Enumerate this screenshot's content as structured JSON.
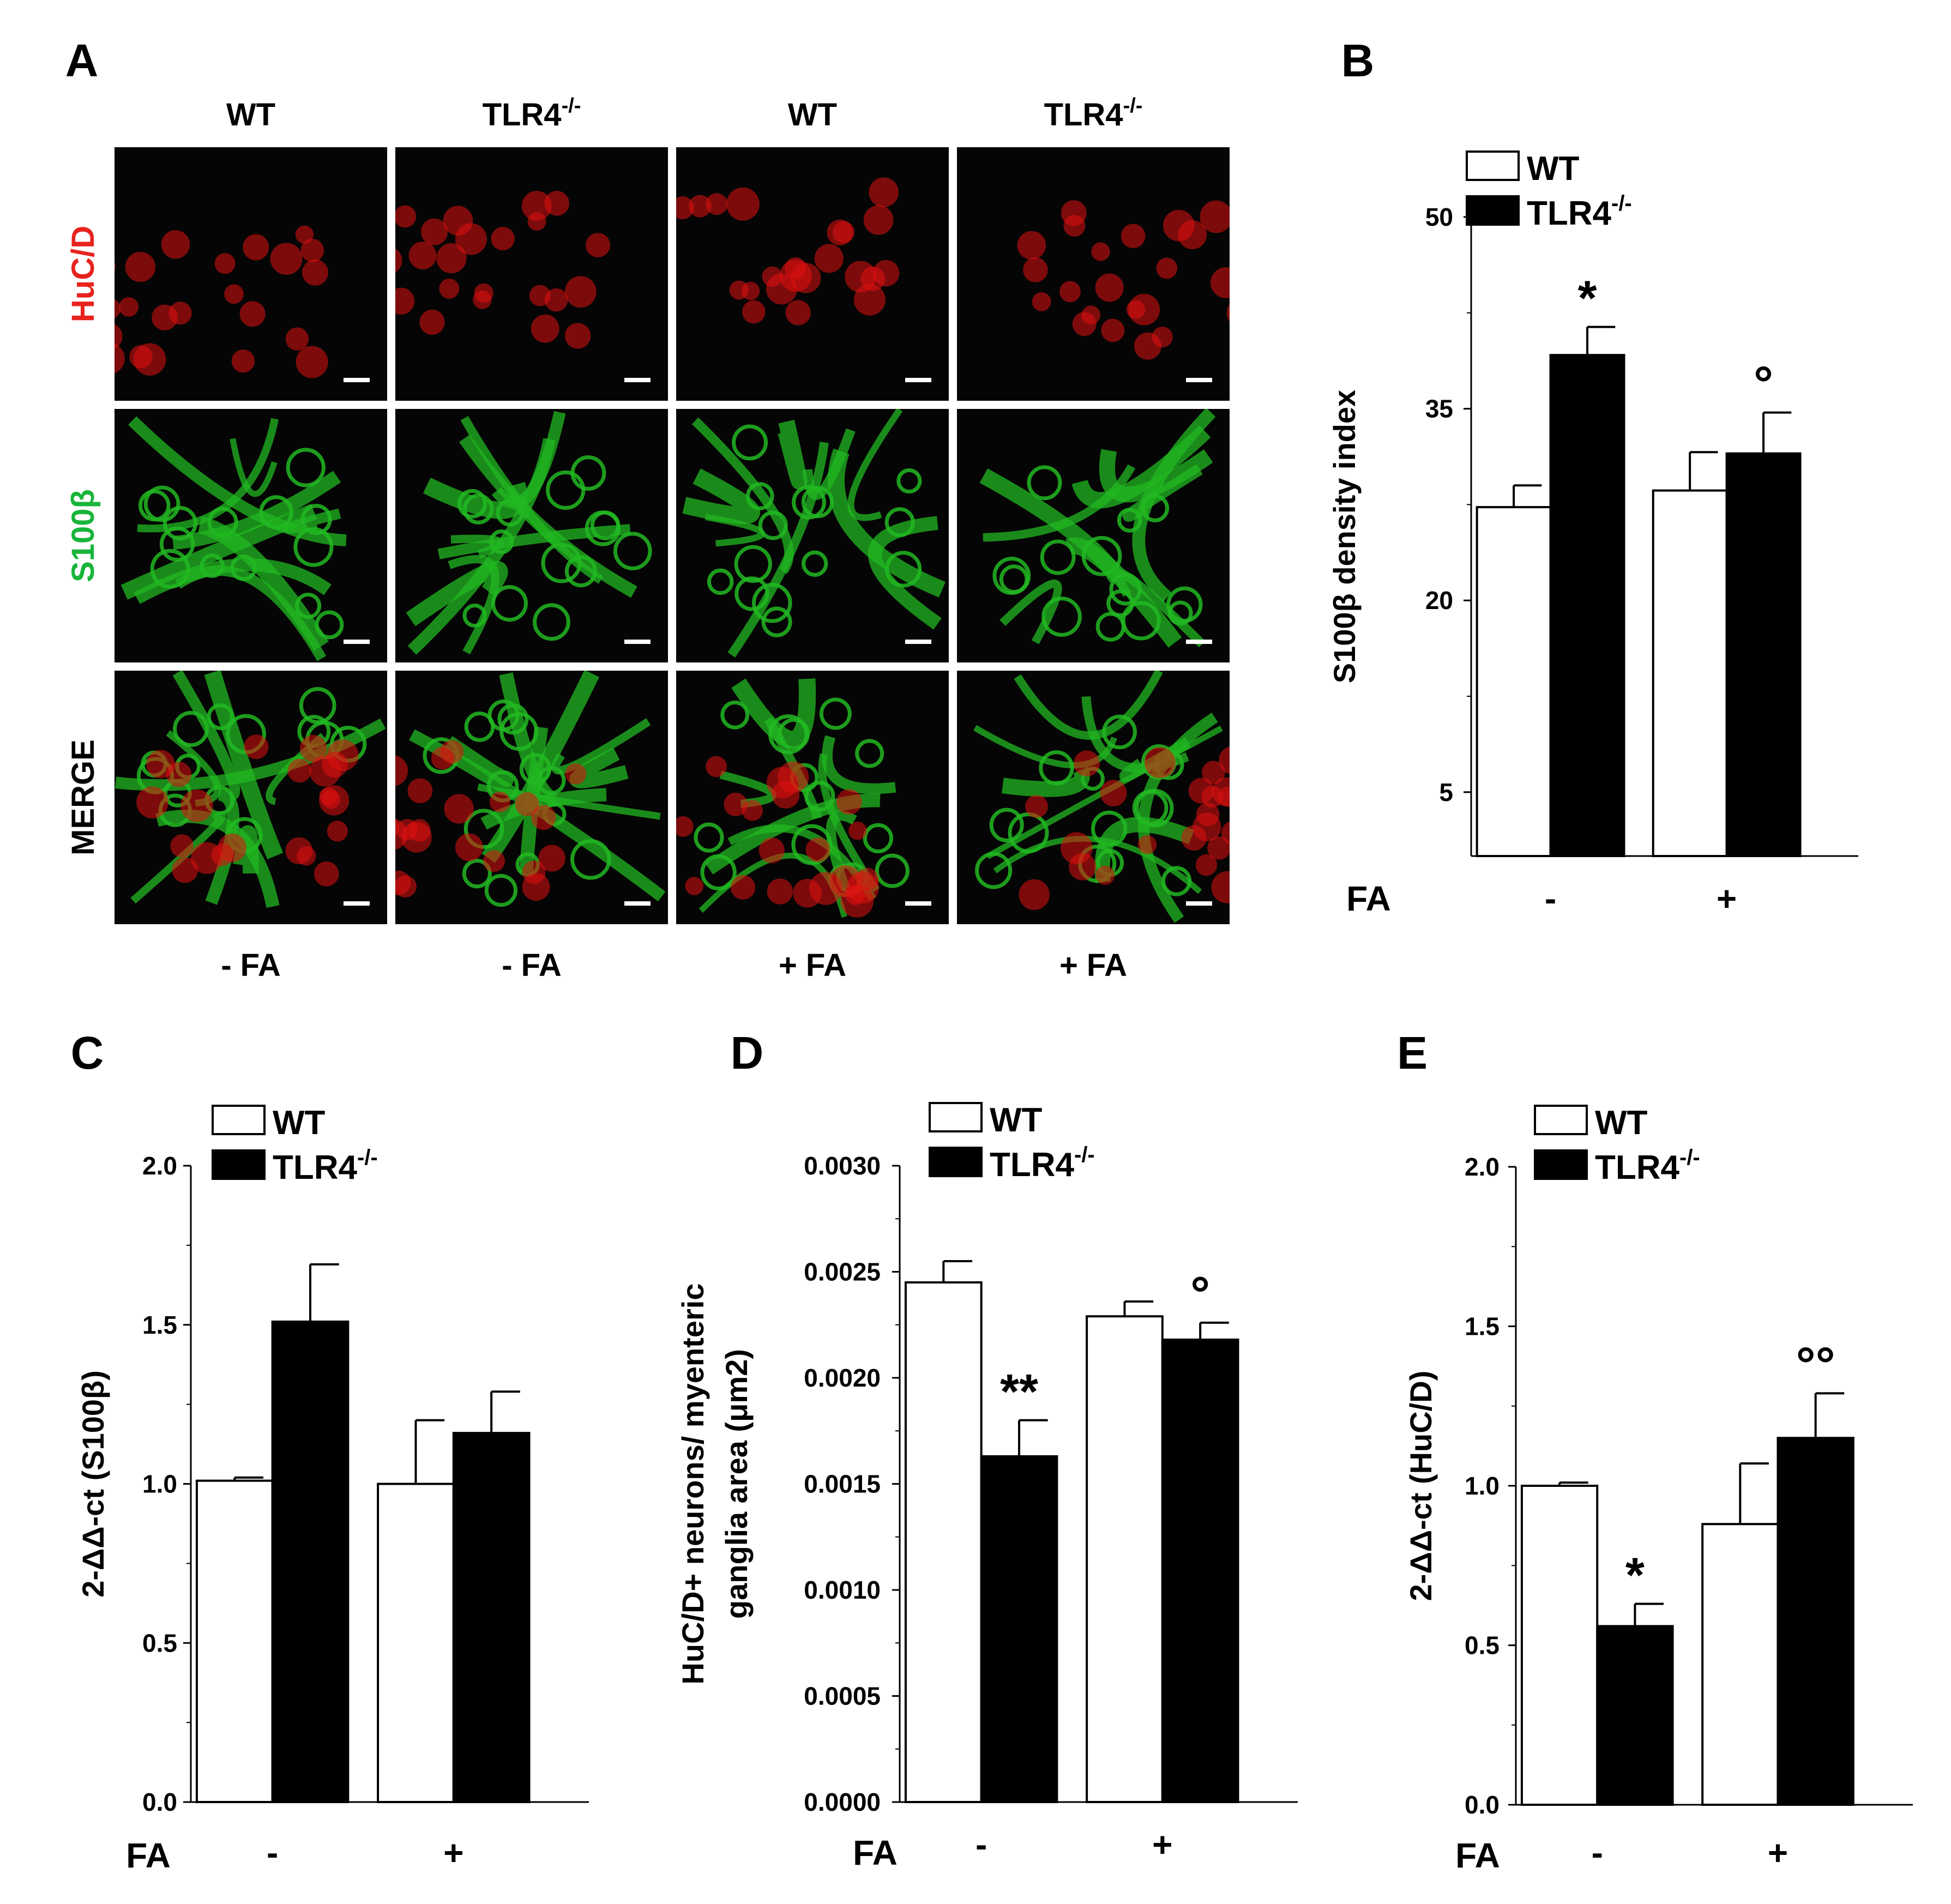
{
  "panel_a": {
    "letter": "A",
    "column_labels": [
      {
        "text": "WT",
        "sup": ""
      },
      {
        "text": "TLR4",
        "sup": "-/-"
      },
      {
        "text": "WT",
        "sup": ""
      },
      {
        "text": "TLR4",
        "sup": "-/-"
      }
    ],
    "row_labels": [
      {
        "text": "HuC/D",
        "color": "#e8231e"
      },
      {
        "text": "S100β",
        "color": "#18b53a"
      },
      {
        "text": "MERGE",
        "color": "#000000"
      }
    ],
    "condition_labels": [
      "- FA",
      "- FA",
      "+ FA",
      "+ FA"
    ],
    "image_colors": {
      "neuron": "#e01010",
      "glia": "#22b822",
      "background": "#050505",
      "scale_bar": "#ffffff"
    }
  },
  "chart_data": [
    {
      "id": "B",
      "letter": "B",
      "type": "bar",
      "categories": [
        "-",
        "+"
      ],
      "xlabel": "FA",
      "ylabel": "S100β density index",
      "ylim": [
        0,
        50
      ],
      "yticks": [
        5,
        20,
        35,
        50
      ],
      "tick_labels": [
        "5",
        "20",
        "35",
        "50"
      ],
      "legend": [
        {
          "label": "WT",
          "sup": ""
        },
        {
          "label": "TLR4",
          "sup": "-/-"
        }
      ],
      "series": [
        {
          "name": "WT",
          "fill": "#ffffff",
          "values": [
            27.3,
            28.6
          ],
          "errors": [
            1.7,
            3.0
          ]
        },
        {
          "name": "TLR4-/-",
          "fill": "#000000",
          "values": [
            39.2,
            31.5
          ],
          "errors": [
            2.2,
            3.2
          ]
        }
      ],
      "annotations": [
        {
          "series": 1,
          "category": 0,
          "text": "*"
        },
        {
          "series": 1,
          "category": 1,
          "text": "°"
        }
      ]
    },
    {
      "id": "C",
      "letter": "C",
      "type": "bar",
      "categories": [
        "-",
        "+"
      ],
      "xlabel": "FA",
      "ylabel": "2-ΔΔ-ct (S100β)",
      "ylim": [
        0,
        2
      ],
      "yticks": [
        0,
        0.5,
        1,
        1.5,
        2
      ],
      "tick_labels": [
        "0.0",
        "0.5",
        "1.0",
        "1.5",
        "2.0"
      ],
      "legend": [
        {
          "label": "WT",
          "sup": ""
        },
        {
          "label": "TLR4",
          "sup": "-/-"
        }
      ],
      "series": [
        {
          "name": "WT",
          "fill": "#ffffff",
          "values": [
            1.01,
            1.0
          ],
          "errors": [
            0.01,
            0.2
          ]
        },
        {
          "name": "TLR4-/-",
          "fill": "#000000",
          "values": [
            1.51,
            1.16
          ],
          "errors": [
            0.18,
            0.13
          ]
        }
      ],
      "annotations": []
    },
    {
      "id": "D",
      "letter": "D",
      "type": "bar",
      "categories": [
        "-",
        "+"
      ],
      "xlabel": "FA",
      "ylabel": "HuC/D+ neurons/ myenteric ganglia area (μm2)",
      "ylim": [
        0,
        0.003
      ],
      "yticks": [
        0,
        0.0005,
        0.001,
        0.0015,
        0.002,
        0.0025,
        0.003
      ],
      "tick_labels": [
        "0.0000",
        "0.0005",
        "0.0010",
        "0.0015",
        "0.0020",
        "0.0025",
        "0.0030"
      ],
      "legend": [
        {
          "label": "WT",
          "sup": ""
        },
        {
          "label": "TLR4",
          "sup": "-/-"
        }
      ],
      "series": [
        {
          "name": "WT",
          "fill": "#ffffff",
          "values": [
            0.00245,
            0.00229
          ],
          "errors": [
            0.0001,
            7e-05
          ]
        },
        {
          "name": "TLR4-/-",
          "fill": "#000000",
          "values": [
            0.00163,
            0.00218
          ],
          "errors": [
            0.00017,
            8e-05
          ]
        }
      ],
      "annotations": [
        {
          "series": 1,
          "category": 0,
          "text": "**"
        },
        {
          "series": 1,
          "category": 1,
          "text": "°"
        }
      ]
    },
    {
      "id": "E",
      "letter": "E",
      "type": "bar",
      "categories": [
        "-",
        "+"
      ],
      "xlabel": "FA",
      "ylabel": "2-ΔΔ-ct (HuC/D)",
      "ylim": [
        0,
        2
      ],
      "yticks": [
        0,
        0.5,
        1,
        1.5,
        2
      ],
      "tick_labels": [
        "0.0",
        "0.5",
        "1.0",
        "1.5",
        "2.0"
      ],
      "legend": [
        {
          "label": "WT",
          "sup": ""
        },
        {
          "label": "TLR4",
          "sup": "-/-"
        }
      ],
      "series": [
        {
          "name": "WT",
          "fill": "#ffffff",
          "values": [
            1.0,
            0.88
          ],
          "errors": [
            0.01,
            0.19
          ]
        },
        {
          "name": "TLR4-/-",
          "fill": "#000000",
          "values": [
            0.56,
            1.15
          ],
          "errors": [
            0.07,
            0.14
          ]
        }
      ],
      "annotations": [
        {
          "series": 1,
          "category": 0,
          "text": "*"
        },
        {
          "series": 1,
          "category": 1,
          "text": "°°"
        }
      ]
    }
  ]
}
